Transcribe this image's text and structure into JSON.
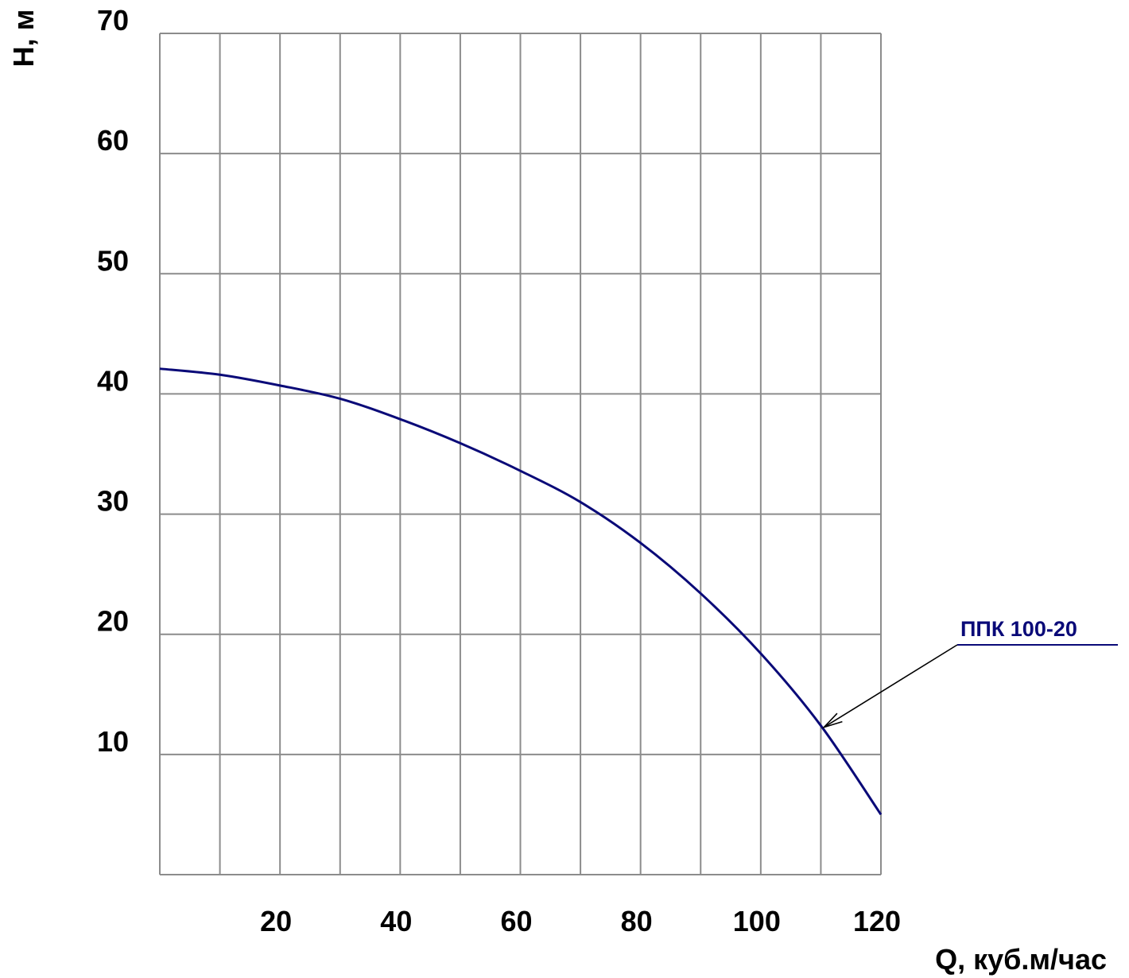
{
  "chart_data": {
    "type": "line",
    "title": "",
    "xlabel": "Q, куб.м/час",
    "ylabel": "H, м",
    "xlim": [
      0,
      120
    ],
    "ylim": [
      0,
      70
    ],
    "x_ticks": [
      20,
      40,
      60,
      80,
      100,
      120
    ],
    "x_tick_labels": [
      "20",
      "40",
      "60",
      "80",
      "100",
      "120"
    ],
    "y_ticks": [
      10,
      20,
      30,
      40,
      50,
      60,
      70
    ],
    "y_tick_labels": [
      "10",
      "20",
      "30",
      "40",
      "50",
      "60",
      "70"
    ],
    "x_grid_step": 10,
    "y_grid_step": 10,
    "grid": true,
    "series": [
      {
        "name": "ППК 100-20",
        "x": [
          0,
          10,
          20,
          30,
          40,
          50,
          60,
          70,
          80,
          90,
          100,
          110,
          120
        ],
        "y": [
          42.1,
          41.6,
          40.7,
          39.6,
          37.9,
          35.9,
          33.6,
          31.0,
          27.6,
          23.4,
          18.4,
          12.4,
          5.0
        ]
      }
    ],
    "annotations": [
      {
        "text": "ППК 100-20",
        "target_x": 110,
        "target_y": 12.2
      }
    ]
  },
  "colors": {
    "grid": "#8c8c8c",
    "curve": "#0a0a78",
    "annotation_text": "#0a0a78",
    "leader": "#000000",
    "text": "#000000"
  }
}
